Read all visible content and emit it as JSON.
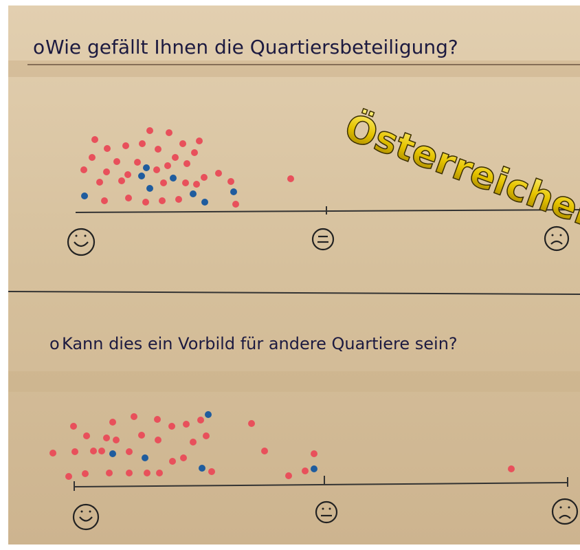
{
  "questions": [
    {
      "text": "Wie gefällt Ihnen die Quartiersbeteiligung?"
    },
    {
      "text": "Kann dies ein Vorbild für andere Quartiere sein?"
    }
  ],
  "overlay": {
    "text": "Österreicher"
  }
}
